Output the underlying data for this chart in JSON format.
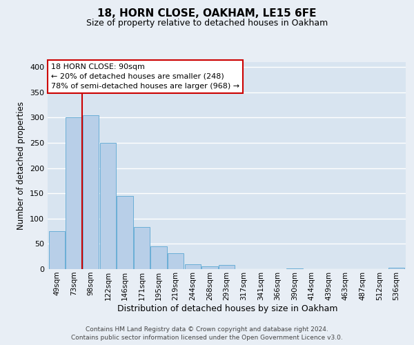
{
  "title": "18, HORN CLOSE, OAKHAM, LE15 6FE",
  "subtitle": "Size of property relative to detached houses in Oakham",
  "xlabel": "Distribution of detached houses by size in Oakham",
  "ylabel": "Number of detached properties",
  "bar_labels": [
    "49sqm",
    "73sqm",
    "98sqm",
    "122sqm",
    "146sqm",
    "171sqm",
    "195sqm",
    "219sqm",
    "244sqm",
    "268sqm",
    "293sqm",
    "317sqm",
    "341sqm",
    "366sqm",
    "390sqm",
    "414sqm",
    "439sqm",
    "463sqm",
    "487sqm",
    "512sqm",
    "536sqm"
  ],
  "bar_values": [
    75,
    300,
    305,
    250,
    145,
    83,
    45,
    32,
    10,
    6,
    8,
    0,
    0,
    0,
    2,
    0,
    0,
    0,
    0,
    0,
    3
  ],
  "bar_color": "#b8cfe8",
  "bar_edge_color": "#6aaed6",
  "background_color": "#e8eef5",
  "plot_bg_color": "#d8e4f0",
  "grid_color": "#ffffff",
  "ylim": [
    0,
    410
  ],
  "yticks": [
    0,
    50,
    100,
    150,
    200,
    250,
    300,
    350,
    400
  ],
  "property_line_x": 1.5,
  "property_line_color": "#cc0000",
  "annotation_title": "18 HORN CLOSE: 90sqm",
  "annotation_line1": "← 20% of detached houses are smaller (248)",
  "annotation_line2": "78% of semi-detached houses are larger (968) →",
  "annotation_box_facecolor": "#ffffff",
  "annotation_box_edgecolor": "#cc0000",
  "footer_line1": "Contains HM Land Registry data © Crown copyright and database right 2024.",
  "footer_line2": "Contains public sector information licensed under the Open Government Licence v3.0."
}
